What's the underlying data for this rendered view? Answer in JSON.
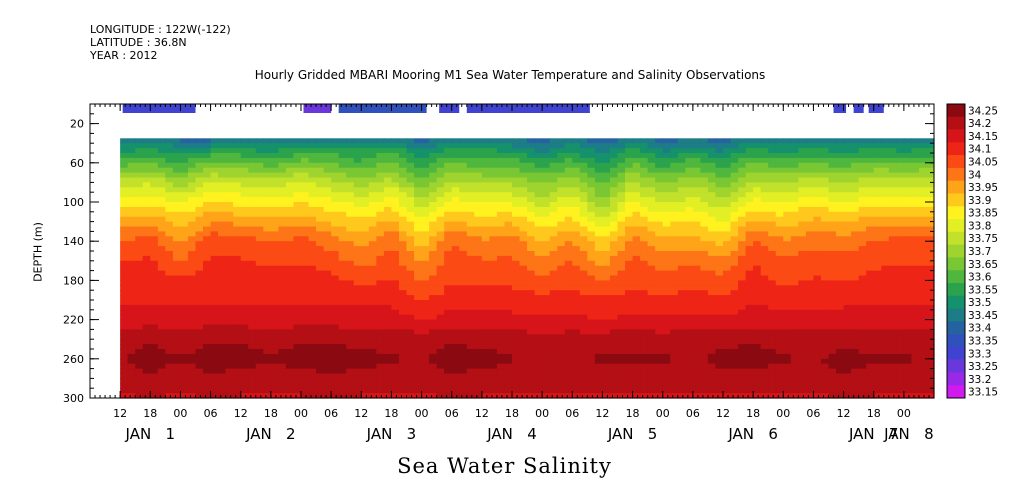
{
  "header": {
    "longitude": "LONGITUDE : 122W(-122)",
    "latitude": "LATITUDE : 36.8N",
    "year": "YEAR : 2012"
  },
  "chart_data": {
    "type": "heatmap",
    "title": "Hourly Gridded MBARI Mooring M1 Sea Water Temperature and Salinity Observations",
    "subtitle": "Sea Water Salinity",
    "ylabel": "DEPTH (m)",
    "y_axis": {
      "range": [
        300,
        0
      ],
      "ticks": [
        20,
        60,
        100,
        140,
        180,
        220,
        260,
        300
      ],
      "reversed": true
    },
    "x_axis": {
      "unit": "hours",
      "range_hours_from_jan1_00": [
        -18,
        150
      ],
      "tick_labels": [
        {
          "h": -12,
          "label": "12"
        },
        {
          "h": -6,
          "label": "18"
        },
        {
          "h": 0,
          "label": "00"
        },
        {
          "h": 6,
          "label": "06"
        },
        {
          "h": 12,
          "label": "12"
        },
        {
          "h": 18,
          "label": "18"
        },
        {
          "h": 24,
          "label": "00"
        },
        {
          "h": 30,
          "label": "06"
        },
        {
          "h": 36,
          "label": "12"
        },
        {
          "h": 42,
          "label": "18"
        },
        {
          "h": 48,
          "label": "00"
        },
        {
          "h": 54,
          "label": "06"
        },
        {
          "h": 60,
          "label": "12"
        },
        {
          "h": 66,
          "label": "18"
        },
        {
          "h": 72,
          "label": "00"
        },
        {
          "h": 78,
          "label": "06"
        },
        {
          "h": 84,
          "label": "12"
        },
        {
          "h": 90,
          "label": "18"
        },
        {
          "h": 96,
          "label": "00"
        },
        {
          "h": 102,
          "label": "06"
        },
        {
          "h": 108,
          "label": "12"
        },
        {
          "h": 114,
          "label": "18"
        },
        {
          "h": 120,
          "label": "00"
        },
        {
          "h": 126,
          "label": "06"
        },
        {
          "h": 132,
          "label": "12"
        },
        {
          "h": 138,
          "label": "18"
        },
        {
          "h": 144,
          "label": "00"
        }
      ],
      "day_labels": [
        {
          "h": -6,
          "label": "JAN   1"
        },
        {
          "h": 18,
          "label": "JAN   2"
        },
        {
          "h": 42,
          "label": "JAN   3"
        },
        {
          "h": 66,
          "label": "JAN   4"
        },
        {
          "h": 90,
          "label": "JAN   5"
        },
        {
          "h": 114,
          "label": "JAN   6"
        },
        {
          "h": 138,
          "label": "JAN   7"
        },
        {
          "h": 145,
          "label": "JAN   8"
        }
      ]
    },
    "colorbar": {
      "levels": [
        "34.25",
        "34.2",
        "34.15",
        "34.1",
        "34.05",
        "34",
        "33.95",
        "33.9",
        "33.85",
        "33.8",
        "33.75",
        "33.7",
        "33.65",
        "33.6",
        "33.55",
        "33.5",
        "33.45",
        "33.4",
        "33.35",
        "33.3",
        "33.25",
        "33.2",
        "33.15"
      ],
      "colors": [
        "#8b0a12",
        "#b40f14",
        "#d6141a",
        "#ee2416",
        "#fb4a14",
        "#fd7516",
        "#ffa418",
        "#ffc81c",
        "#fff21f",
        "#e2ef24",
        "#c1e12b",
        "#9fd42f",
        "#79c733",
        "#4fb63e",
        "#2aa34c",
        "#15916b",
        "#1c7d86",
        "#2462a0",
        "#3050bc",
        "#3f43cf",
        "#6a37dd",
        "#9929e8",
        "#d01aef"
      ]
    },
    "near_surface_20m_segments_hours": [
      {
        "start": -11.5,
        "end": 3.0,
        "value": 33.3
      },
      {
        "start": 24.5,
        "end": 30.0,
        "value": 33.25
      },
      {
        "start": 31.5,
        "end": 49.0,
        "value": 33.35
      },
      {
        "start": 51.5,
        "end": 55.5,
        "value": 33.3
      },
      {
        "start": 57.0,
        "end": 81.5,
        "value": 33.3
      },
      {
        "start": 130.0,
        "end": 132.5,
        "value": 33.3
      },
      {
        "start": 134.0,
        "end": 136.0,
        "value": 33.3
      },
      {
        "start": 137.0,
        "end": 140.0,
        "value": 33.3
      }
    ],
    "profile_depths_m": [
      35,
      45,
      60,
      80,
      100,
      120,
      140,
      160,
      180,
      200,
      220,
      240,
      260,
      280,
      300
    ],
    "profiles_every_6h": [
      {
        "h": -12,
        "v": [
          33.4,
          33.5,
          33.6,
          33.75,
          33.85,
          33.95,
          34.02,
          34.08,
          34.1,
          34.12,
          34.15,
          34.2,
          34.22,
          34.2,
          34.17
        ]
      },
      {
        "h": -6,
        "v": [
          33.45,
          33.52,
          33.62,
          33.77,
          33.86,
          33.96,
          34.05,
          34.08,
          34.1,
          34.12,
          34.15,
          34.22,
          34.24,
          34.22,
          34.17
        ]
      },
      {
        "h": 0,
        "v": [
          33.4,
          33.48,
          33.56,
          33.7,
          33.82,
          33.9,
          33.97,
          34.02,
          34.08,
          34.12,
          34.15,
          34.2,
          34.23,
          34.2,
          34.17
        ]
      },
      {
        "h": 6,
        "v": [
          33.4,
          33.5,
          33.65,
          33.78,
          33.88,
          33.97,
          34.06,
          34.08,
          34.1,
          34.12,
          34.15,
          34.22,
          34.24,
          34.22,
          34.17
        ]
      },
      {
        "h": 12,
        "v": [
          33.42,
          33.52,
          33.63,
          33.76,
          33.86,
          33.96,
          34.05,
          34.08,
          34.1,
          34.12,
          34.15,
          34.22,
          34.24,
          34.21,
          34.17
        ]
      },
      {
        "h": 18,
        "v": [
          33.4,
          33.5,
          33.6,
          33.74,
          33.84,
          33.94,
          34.02,
          34.06,
          34.1,
          34.12,
          34.15,
          34.21,
          34.23,
          34.2,
          34.17
        ]
      },
      {
        "h": 24,
        "v": [
          33.45,
          33.52,
          33.65,
          33.78,
          33.87,
          33.96,
          34.04,
          34.07,
          34.1,
          34.12,
          34.15,
          34.22,
          34.24,
          34.21,
          34.17
        ]
      },
      {
        "h": 30,
        "v": [
          33.45,
          33.55,
          33.62,
          33.74,
          33.84,
          33.92,
          34.0,
          34.05,
          34.09,
          34.12,
          34.15,
          34.22,
          34.24,
          34.22,
          34.17
        ]
      },
      {
        "h": 36,
        "v": [
          33.45,
          33.52,
          33.58,
          33.7,
          33.8,
          33.88,
          33.95,
          34.0,
          34.06,
          34.11,
          34.15,
          34.21,
          34.24,
          34.21,
          34.17
        ]
      },
      {
        "h": 42,
        "v": [
          33.45,
          33.55,
          33.63,
          33.75,
          33.85,
          33.94,
          34.02,
          34.05,
          34.08,
          34.11,
          34.15,
          34.21,
          34.23,
          34.2,
          34.17
        ]
      },
      {
        "h": 48,
        "v": [
          33.4,
          33.45,
          33.55,
          33.65,
          33.75,
          33.82,
          33.9,
          33.97,
          34.02,
          34.07,
          34.12,
          34.2,
          34.22,
          34.2,
          34.17
        ]
      },
      {
        "h": 54,
        "v": [
          33.45,
          33.52,
          33.62,
          33.74,
          33.84,
          33.94,
          34.02,
          34.05,
          34.07,
          34.1,
          34.15,
          34.22,
          34.24,
          34.22,
          34.17
        ]
      },
      {
        "h": 60,
        "v": [
          33.45,
          33.52,
          33.6,
          33.72,
          33.82,
          33.9,
          33.98,
          34.03,
          34.07,
          34.1,
          34.14,
          34.21,
          34.24,
          34.21,
          34.17
        ]
      },
      {
        "h": 66,
        "v": [
          33.42,
          33.5,
          33.6,
          33.72,
          33.82,
          33.92,
          34.0,
          34.03,
          34.06,
          34.1,
          34.14,
          34.21,
          34.23,
          34.21,
          34.17
        ]
      },
      {
        "h": 72,
        "v": [
          33.4,
          33.45,
          33.55,
          33.66,
          33.75,
          33.84,
          33.92,
          33.98,
          34.04,
          34.09,
          34.13,
          34.18,
          34.2,
          34.2,
          34.17
        ]
      },
      {
        "h": 78,
        "v": [
          33.45,
          33.5,
          33.6,
          33.72,
          33.82,
          33.9,
          33.98,
          34.03,
          34.06,
          34.1,
          34.14,
          34.2,
          34.22,
          34.2,
          34.17
        ]
      },
      {
        "h": 84,
        "v": [
          33.35,
          33.45,
          33.5,
          33.6,
          33.68,
          33.78,
          33.88,
          33.95,
          34.02,
          34.08,
          34.12,
          34.2,
          34.23,
          34.21,
          34.17
        ]
      },
      {
        "h": 90,
        "v": [
          33.45,
          33.52,
          33.62,
          33.74,
          33.84,
          33.92,
          34.0,
          34.04,
          34.06,
          34.1,
          34.14,
          34.21,
          34.23,
          34.21,
          34.17
        ]
      },
      {
        "h": 96,
        "v": [
          33.4,
          33.45,
          33.55,
          33.66,
          33.76,
          33.86,
          33.94,
          34.0,
          34.04,
          34.08,
          34.13,
          34.2,
          34.23,
          34.21,
          34.17
        ]
      },
      {
        "h": 102,
        "v": [
          33.42,
          33.5,
          33.6,
          33.72,
          33.8,
          33.88,
          33.95,
          34.02,
          34.06,
          34.1,
          34.14,
          34.2,
          34.22,
          34.2,
          34.17
        ]
      },
      {
        "h": 108,
        "v": [
          33.4,
          33.45,
          33.55,
          33.65,
          33.74,
          33.82,
          33.9,
          33.98,
          34.04,
          34.08,
          34.13,
          34.21,
          34.24,
          34.21,
          34.17
        ]
      },
      {
        "h": 114,
        "v": [
          33.45,
          33.52,
          33.62,
          33.74,
          33.84,
          33.94,
          34.03,
          34.07,
          34.1,
          34.12,
          34.15,
          34.22,
          34.24,
          34.21,
          34.17
        ]
      },
      {
        "h": 120,
        "v": [
          33.42,
          33.5,
          33.6,
          33.72,
          33.82,
          33.9,
          33.98,
          34.03,
          34.06,
          34.1,
          34.14,
          34.21,
          34.23,
          34.21,
          34.17
        ]
      },
      {
        "h": 126,
        "v": [
          33.42,
          33.52,
          33.62,
          33.76,
          33.86,
          33.94,
          34.01,
          34.05,
          34.08,
          34.11,
          34.14,
          34.2,
          34.22,
          34.2,
          34.17
        ]
      },
      {
        "h": 132,
        "v": [
          33.42,
          33.5,
          33.6,
          33.72,
          33.82,
          33.92,
          34.0,
          34.04,
          34.07,
          34.11,
          34.15,
          34.21,
          34.24,
          34.22,
          34.17
        ]
      },
      {
        "h": 138,
        "v": [
          33.45,
          33.52,
          33.63,
          33.76,
          33.86,
          33.95,
          34.03,
          34.06,
          34.09,
          34.12,
          34.15,
          34.21,
          34.23,
          34.21,
          34.17
        ]
      },
      {
        "h": 144,
        "v": [
          33.42,
          33.5,
          33.62,
          33.76,
          33.86,
          33.96,
          34.04,
          34.07,
          34.1,
          34.12,
          34.15,
          34.21,
          34.23,
          34.2,
          34.17
        ]
      },
      {
        "h": 150,
        "v": [
          33.42,
          33.52,
          33.63,
          33.76,
          33.86,
          33.96,
          34.04,
          34.07,
          34.1,
          34.12,
          34.15,
          34.2,
          34.22,
          34.2,
          34.17
        ]
      }
    ]
  }
}
